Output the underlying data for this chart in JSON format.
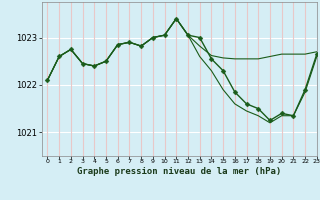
{
  "title": "Graphe pression niveau de la mer (hPa)",
  "bg_color": "#d5eef5",
  "grid_color_v": "#e8c8c8",
  "grid_color_h": "#ffffff",
  "line_color": "#1a5c1a",
  "xlim": [
    -0.5,
    23
  ],
  "ylim": [
    1020.5,
    1023.75
  ],
  "yticks": [
    1021,
    1022,
    1023
  ],
  "xticks": [
    0,
    1,
    2,
    3,
    4,
    5,
    6,
    7,
    8,
    9,
    10,
    11,
    12,
    13,
    14,
    15,
    16,
    17,
    18,
    19,
    20,
    21,
    22,
    23
  ],
  "series": [
    {
      "x": [
        0,
        1,
        2,
        3,
        4,
        5,
        6,
        7,
        8,
        9,
        10,
        11,
        12,
        13,
        14,
        15,
        16,
        17,
        18,
        19,
        20,
        21,
        22,
        23
      ],
      "y": [
        1022.1,
        1022.6,
        1022.75,
        1022.45,
        1022.4,
        1022.5,
        1022.85,
        1022.9,
        1022.82,
        1023.0,
        1023.05,
        1023.4,
        1023.05,
        1023.0,
        1022.55,
        1022.3,
        1021.85,
        1021.6,
        1021.5,
        1021.25,
        1021.4,
        1021.35,
        1021.9,
        1022.65
      ],
      "marker": "D",
      "ms": 2.5,
      "lw": 1.0
    },
    {
      "x": [
        0,
        1,
        2,
        3,
        4,
        5,
        6,
        7,
        8,
        9,
        10,
        11,
        12,
        13,
        14,
        15,
        16,
        17,
        18,
        19,
        20,
        21,
        22,
        23
      ],
      "y": [
        1022.1,
        1022.6,
        1022.75,
        1022.45,
        1022.4,
        1022.5,
        1022.85,
        1022.9,
        1022.82,
        1023.0,
        1023.05,
        1023.4,
        1023.05,
        1022.82,
        1022.62,
        1022.57,
        1022.55,
        1022.55,
        1022.55,
        1022.6,
        1022.65,
        1022.65,
        1022.65,
        1022.7
      ],
      "marker": null,
      "ms": 0,
      "lw": 0.8
    },
    {
      "x": [
        0,
        1,
        2,
        3,
        4,
        5,
        6,
        7,
        8,
        9,
        10,
        11,
        12,
        13,
        14,
        15,
        16,
        17,
        18,
        19,
        20,
        21,
        22,
        23
      ],
      "y": [
        1022.1,
        1022.6,
        1022.75,
        1022.45,
        1022.4,
        1022.5,
        1022.85,
        1022.9,
        1022.82,
        1023.0,
        1023.05,
        1023.4,
        1023.05,
        1022.6,
        1022.3,
        1021.9,
        1021.6,
        1021.45,
        1021.35,
        1021.2,
        1021.35,
        1021.35,
        1021.85,
        1022.6
      ],
      "marker": null,
      "ms": 0,
      "lw": 0.8
    }
  ]
}
